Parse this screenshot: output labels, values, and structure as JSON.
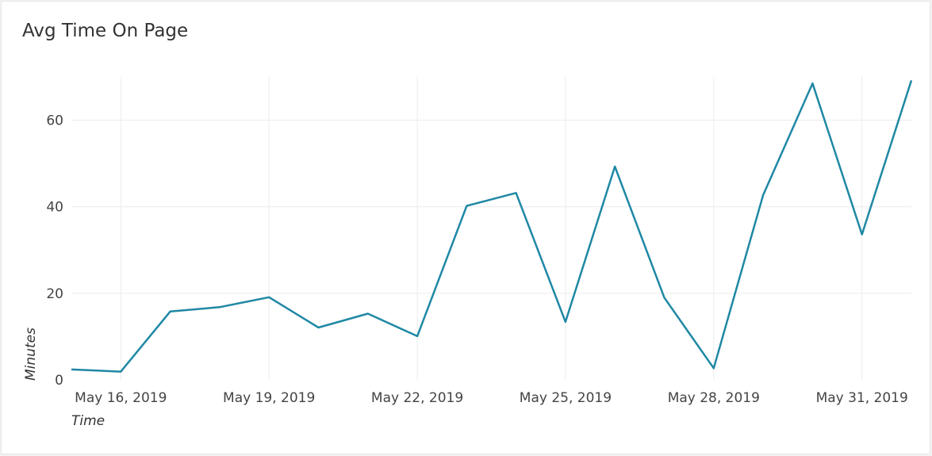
{
  "chart_data": {
    "type": "line",
    "title": "Avg Time On Page",
    "xlabel": "Time",
    "ylabel": "Minutes",
    "x": [
      "2019-05-15",
      "2019-05-16",
      "2019-05-17",
      "2019-05-18",
      "2019-05-19",
      "2019-05-20",
      "2019-05-21",
      "2019-05-22",
      "2019-05-23",
      "2019-05-24",
      "2019-05-25",
      "2019-05-26",
      "2019-05-27",
      "2019-05-28",
      "2019-05-29",
      "2019-05-30",
      "2019-05-31",
      "2019-06-01"
    ],
    "series": [
      {
        "values": [
          2.4,
          1.9,
          15.8,
          16.8,
          19.1,
          12.1,
          15.3,
          10.1,
          40.2,
          43.2,
          13.4,
          49.3,
          19.0,
          2.7,
          42.7,
          68.5,
          33.6,
          69.2
        ]
      }
    ],
    "xticks": [
      {
        "date": "2019-05-16",
        "label": "May 16, 2019"
      },
      {
        "date": "2019-05-19",
        "label": "May 19, 2019"
      },
      {
        "date": "2019-05-22",
        "label": "May 22, 2019"
      },
      {
        "date": "2019-05-25",
        "label": "May 25, 2019"
      },
      {
        "date": "2019-05-28",
        "label": "May 28, 2019"
      },
      {
        "date": "2019-05-31",
        "label": "May 31, 2019"
      }
    ],
    "yticks": [
      0,
      20,
      40,
      60
    ],
    "ylim": [
      0,
      70
    ],
    "grid": true,
    "line_color": "#1f88a4"
  }
}
